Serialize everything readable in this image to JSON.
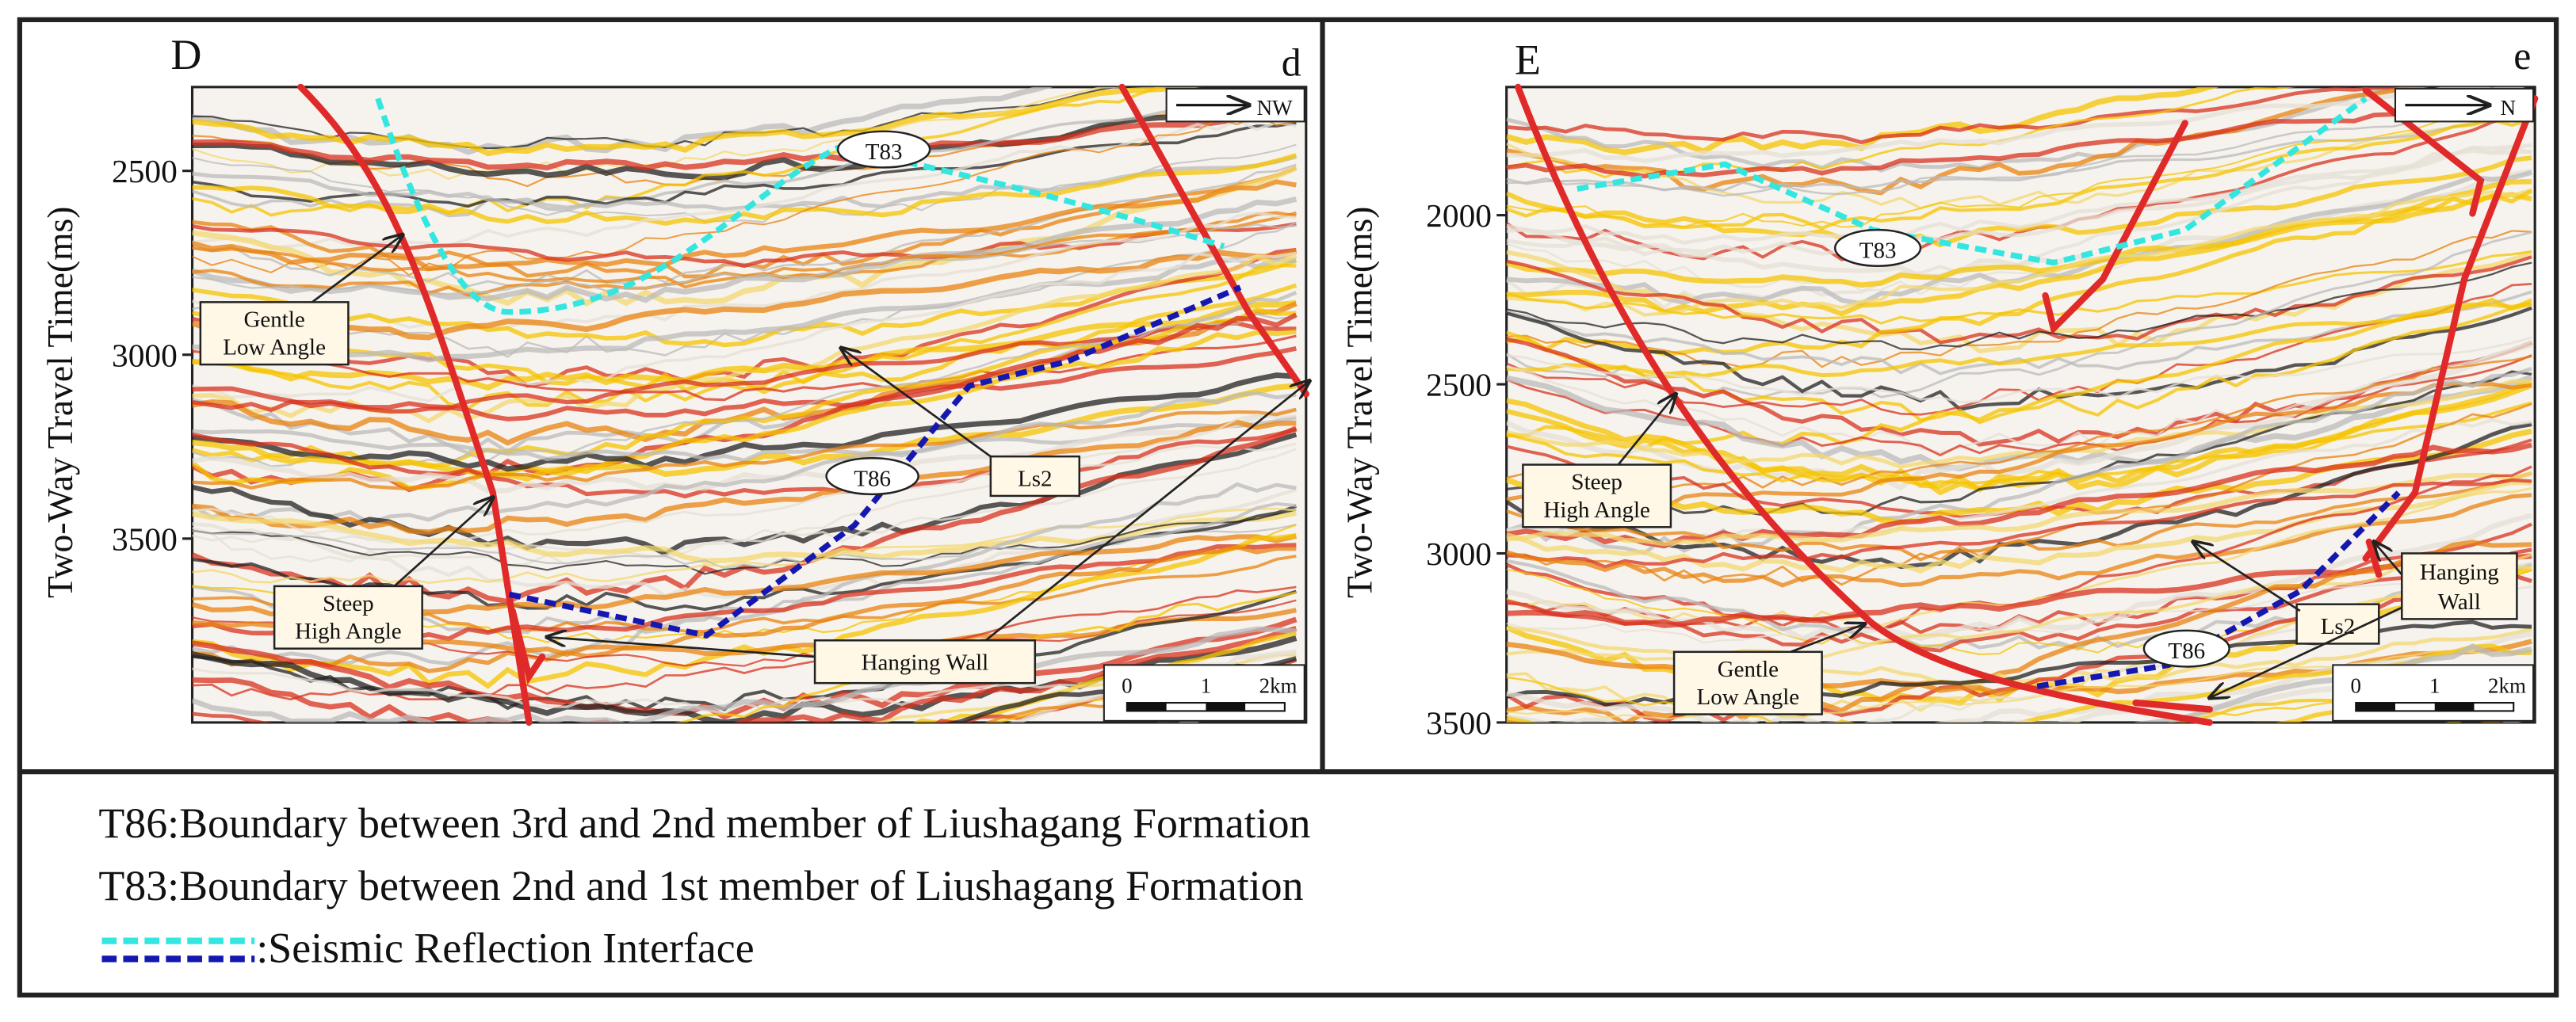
{
  "panels": [
    {
      "letter": "D",
      "sublabel": "d",
      "direction": "NW",
      "ylabel": "Two-Way Travel Time(ms)",
      "ylim": [
        2272,
        4000
      ],
      "yticks": [
        2500,
        3000,
        3500
      ],
      "labels": {
        "t83": "T83",
        "t86": "T86",
        "ls2": "Ls2",
        "gentle": [
          "Gentle",
          "Low Angle"
        ],
        "steep": [
          "Steep",
          "High Angle"
        ],
        "hanging": [
          "Hanging Wall"
        ]
      },
      "scale": [
        "0",
        "1",
        "2km"
      ]
    },
    {
      "letter": "E",
      "sublabel": "e",
      "direction": "N",
      "ylabel": "Two-Way Travel Time(ms)",
      "ylim": [
        1621,
        3500
      ],
      "yticks": [
        2000,
        2500,
        3000,
        3500
      ],
      "labels": {
        "t83": "T83",
        "t86": "T86",
        "ls2": "Ls2",
        "gentle": [
          "Gentle",
          "Low Angle"
        ],
        "steep": [
          "Steep",
          "High Angle"
        ],
        "hanging": [
          "Hanging",
          "Wall"
        ]
      },
      "scale": [
        "0",
        "1",
        "2km"
      ]
    }
  ],
  "legend": [
    "T86:Boundary between 3rd and 2nd member of Liushagang Formation",
    "T83:Boundary between 2nd and 1st member of  Liushagang Formation",
    ":Seismic Reflection Interface"
  ]
}
